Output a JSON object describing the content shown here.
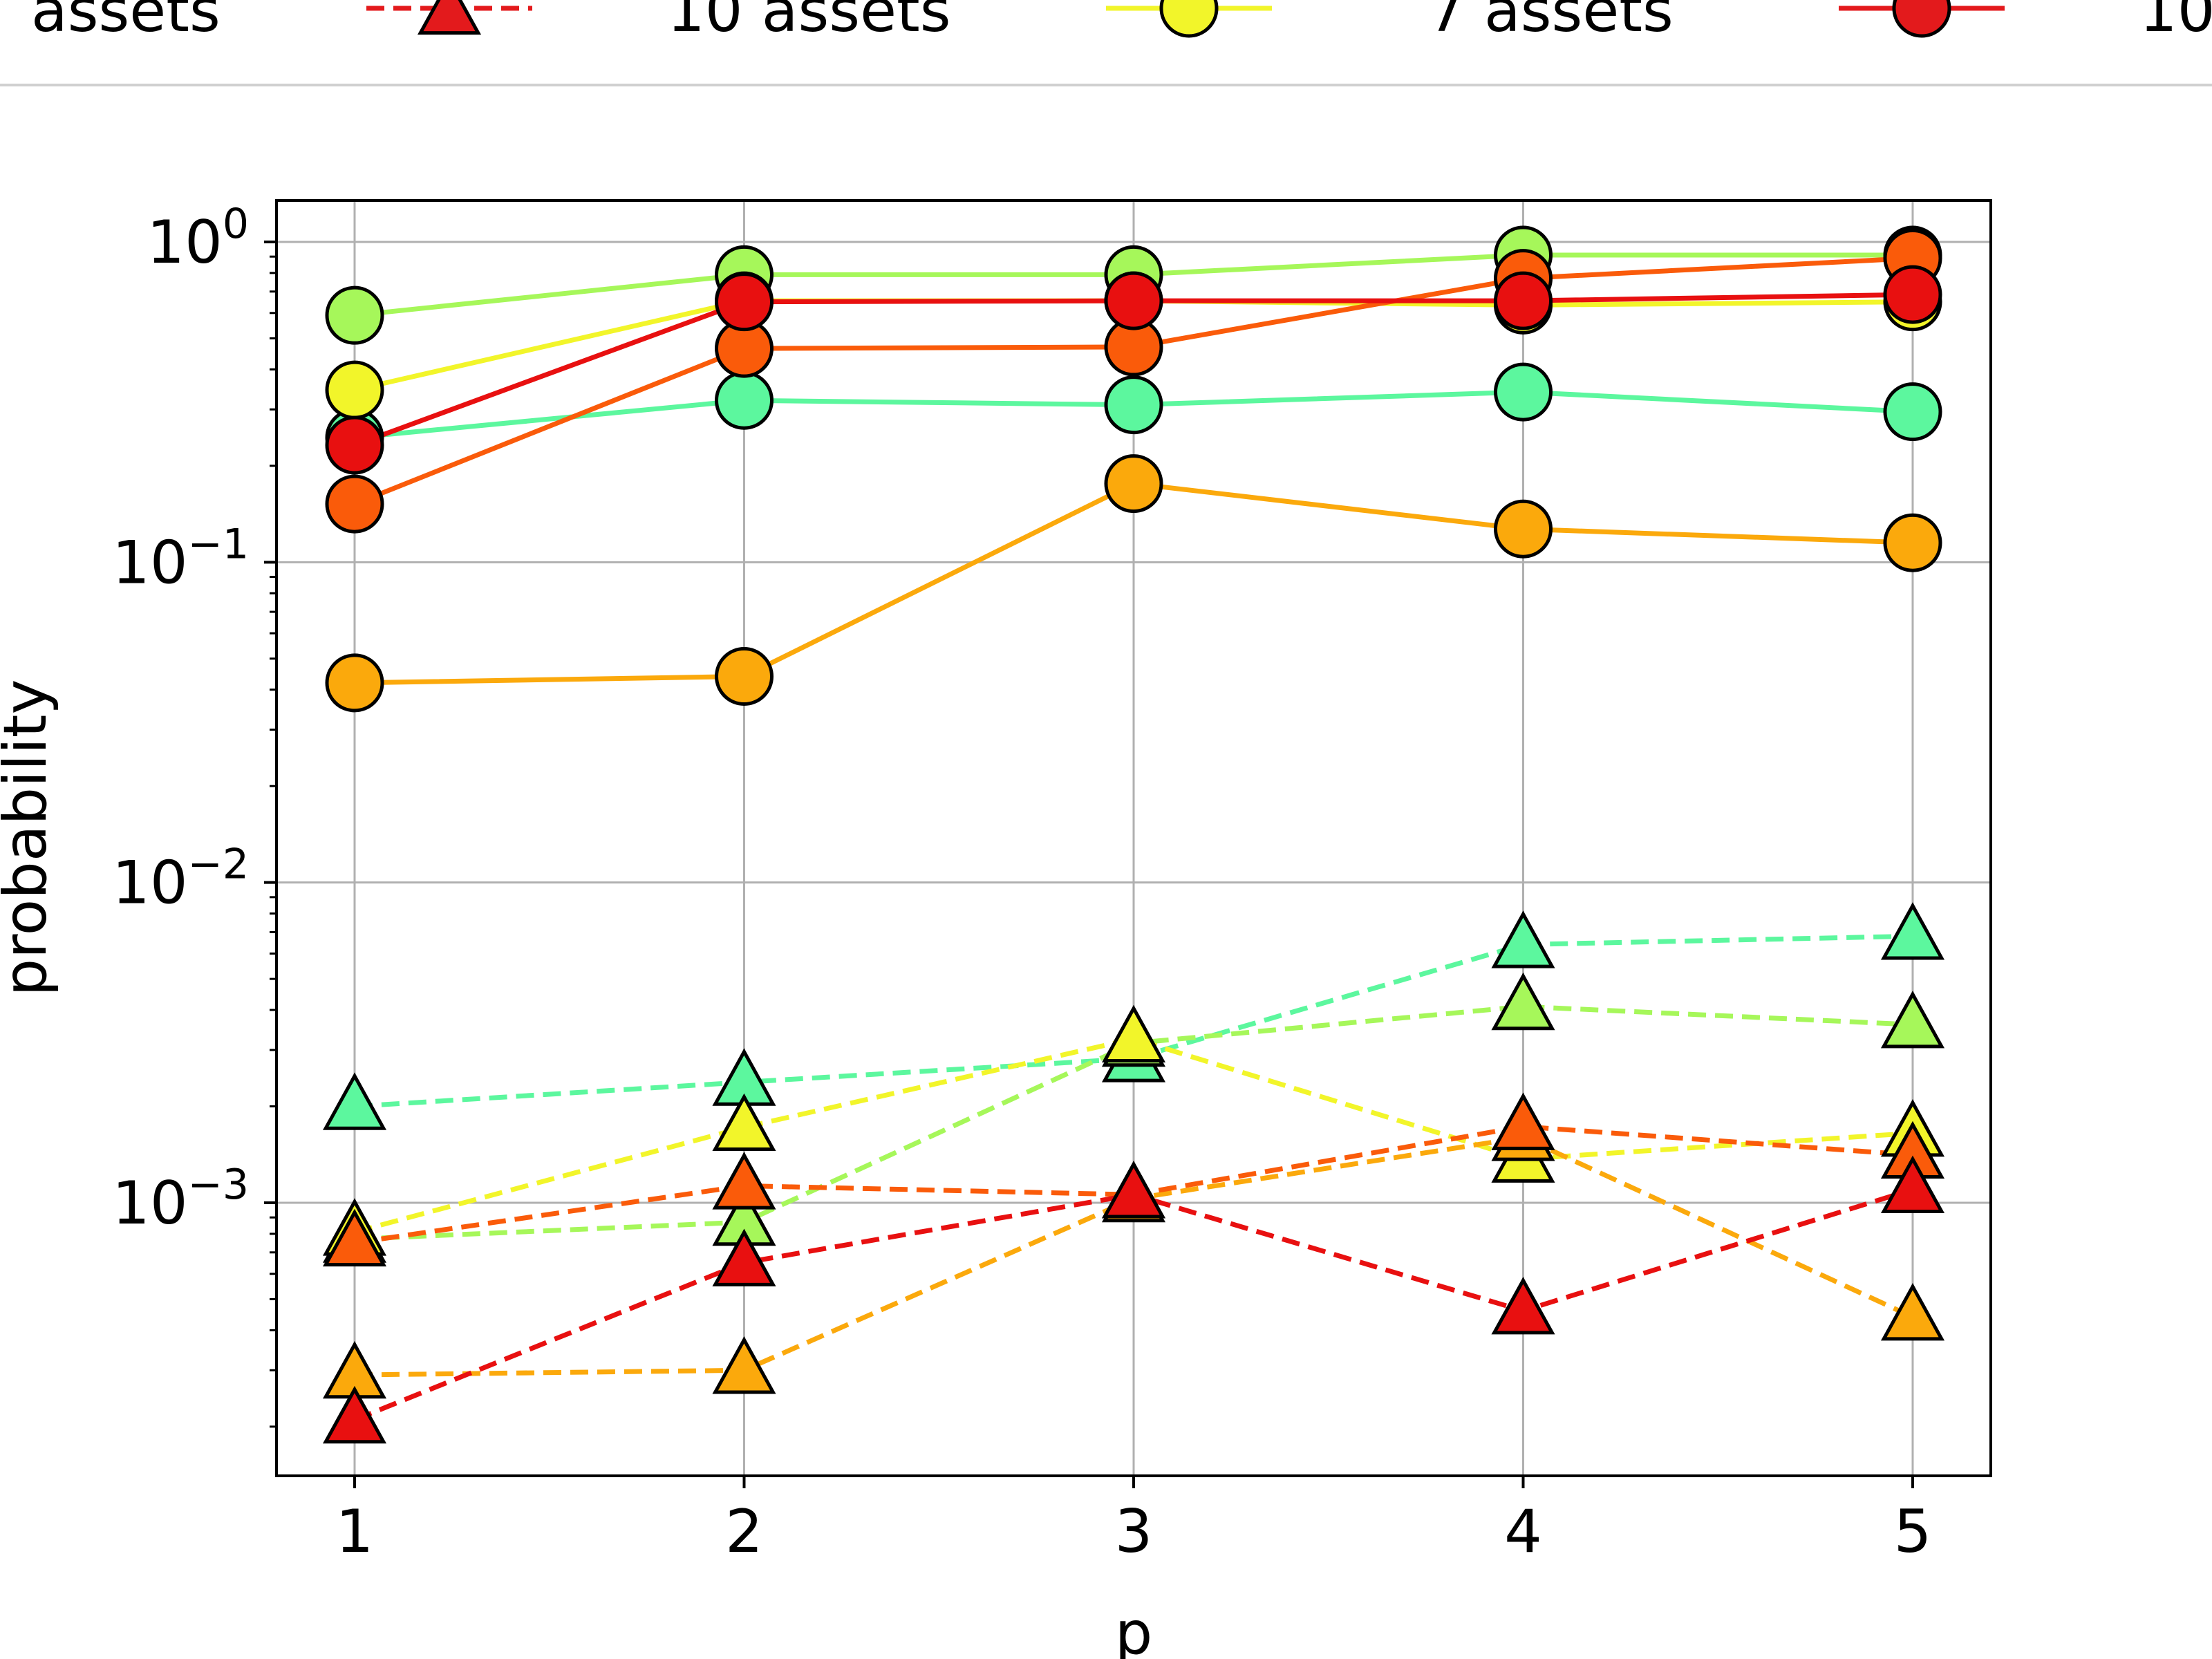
{
  "chart_data": {
    "type": "line",
    "xlabel": "p",
    "ylabel": "probability",
    "x": [
      1,
      2,
      3,
      4,
      5
    ],
    "x_ticks": [
      "1",
      "2",
      "3",
      "4",
      "5"
    ],
    "y_scale": "log",
    "ylim": [
      0.00018,
      1.35
    ],
    "y_ticks": [
      {
        "value": 1,
        "base": "10",
        "exp": "0"
      },
      {
        "value": 0.1,
        "base": "10",
        "exp": "−1"
      },
      {
        "value": 0.01,
        "base": "10",
        "exp": "−2"
      },
      {
        "value": 0.001,
        "base": "10",
        "exp": "−3"
      }
    ],
    "grid": true,
    "legend_position": "top (cropped)",
    "legend": [
      {
        "label": "assets",
        "marker": "none",
        "line": "none",
        "color": "#000000"
      },
      {
        "label": "10 assets",
        "marker": "triangle",
        "line": "dashed",
        "color": "#e31a1c"
      },
      {
        "label": "7 assets",
        "marker": "circle",
        "line": "solid",
        "color": "#f2f52a"
      },
      {
        "label": "10",
        "marker": "circle",
        "line": "solid",
        "color": "#e31a1c"
      }
    ],
    "series": [
      {
        "color": "#5cf79e",
        "marker": "circle",
        "line": "solid",
        "values": [
          0.245,
          0.32,
          0.31,
          0.34,
          0.295
        ]
      },
      {
        "color": "#a6f75a",
        "marker": "circle",
        "line": "solid",
        "values": [
          0.59,
          0.79,
          0.79,
          0.91,
          0.91
        ]
      },
      {
        "color": "#f2f52a",
        "marker": "circle",
        "line": "solid",
        "values": [
          0.345,
          0.655,
          0.655,
          0.635,
          0.65
        ]
      },
      {
        "color": "#fba90c",
        "marker": "circle",
        "line": "solid",
        "values": [
          0.042,
          0.044,
          0.176,
          0.127,
          0.115
        ]
      },
      {
        "color": "#fa5b0a",
        "marker": "circle",
        "line": "solid",
        "values": [
          0.152,
          0.465,
          0.47,
          0.77,
          0.89
        ]
      },
      {
        "color": "#e81010",
        "marker": "circle",
        "line": "solid",
        "values": [
          0.232,
          0.65,
          0.655,
          0.655,
          0.685
        ]
      },
      {
        "color": "#5cf79e",
        "marker": "triangle",
        "line": "dashed",
        "values": [
          0.002,
          0.00238,
          0.00282,
          0.0064,
          0.0068
        ]
      },
      {
        "color": "#a6f75a",
        "marker": "triangle",
        "line": "dashed",
        "values": [
          0.00077,
          0.00087,
          0.00315,
          0.0041,
          0.0036
        ]
      },
      {
        "color": "#f2f52a",
        "marker": "triangle",
        "line": "dashed",
        "values": [
          0.00081,
          0.00172,
          0.00325,
          0.00137,
          0.00165
        ]
      },
      {
        "color": "#fba90c",
        "marker": "triangle",
        "line": "dashed",
        "values": [
          0.00029,
          0.0003,
          0.00103,
          0.0016,
          0.00044
        ]
      },
      {
        "color": "#fa5b0a",
        "marker": "triangle",
        "line": "dashed",
        "values": [
          0.00075,
          0.00113,
          0.00106,
          0.00173,
          0.00141
        ]
      },
      {
        "color": "#e81010",
        "marker": "triangle",
        "line": "dashed",
        "values": [
          0.00021,
          0.00065,
          0.00106,
          0.00046,
          0.0011
        ]
      }
    ]
  }
}
